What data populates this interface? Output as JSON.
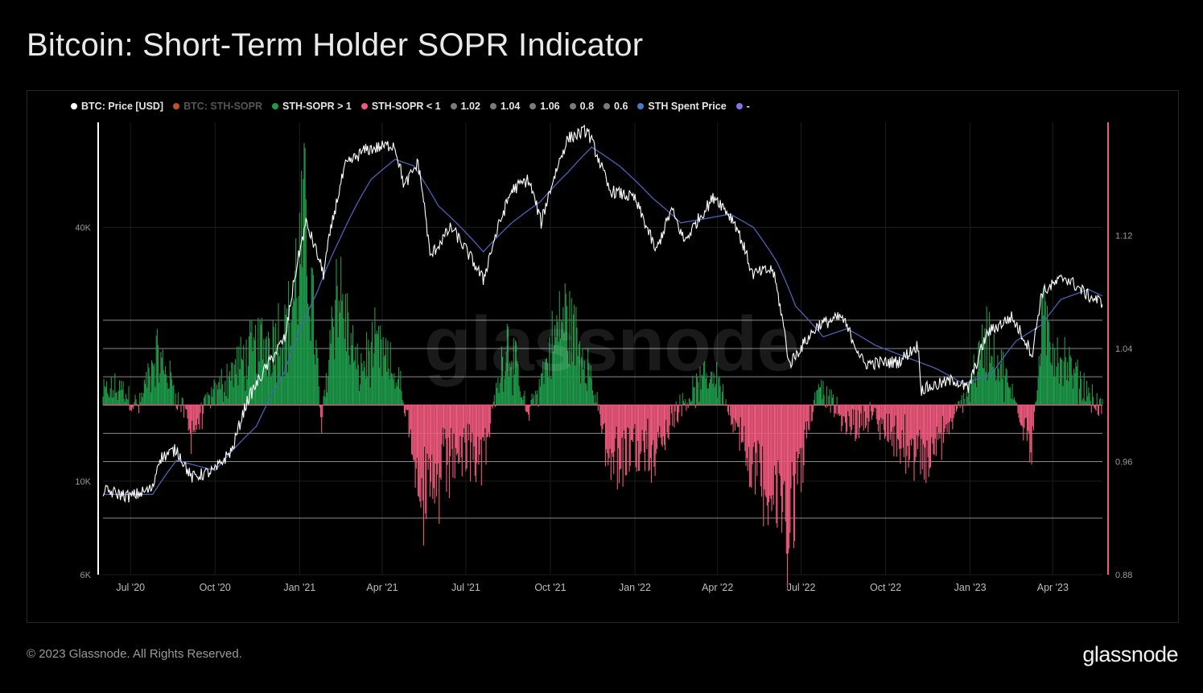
{
  "title": "Bitcoin: Short-Term Holder SOPR Indicator",
  "watermark": "glassnode",
  "footer": {
    "copyright": "© 2023 Glassnode. All Rights Reserved.",
    "logo": "glassnode"
  },
  "legend": [
    {
      "label": "BTC: Price [USD]",
      "color": "#ffffff",
      "text_color": "#e6e6e6"
    },
    {
      "label": "BTC: STH-SOPR",
      "color": "#c0531e",
      "text_color": "#555555"
    },
    {
      "label": "STH-SOPR > 1",
      "color": "#1e9a4a",
      "text_color": "#e6e6e6"
    },
    {
      "label": "STH-SOPR < 1",
      "color": "#f05a7e",
      "text_color": "#e6e6e6"
    },
    {
      "label": "1.02",
      "color": "#7a7a7a",
      "text_color": "#e6e6e6"
    },
    {
      "label": "1.04",
      "color": "#7a7a7a",
      "text_color": "#e6e6e6"
    },
    {
      "label": "1.06",
      "color": "#7a7a7a",
      "text_color": "#e6e6e6"
    },
    {
      "label": "0.8",
      "color": "#7a7a7a",
      "text_color": "#e6e6e6"
    },
    {
      "label": "0.6",
      "color": "#7a7a7a",
      "text_color": "#e6e6e6"
    },
    {
      "label": "STH Spent Price",
      "color": "#4a78c8",
      "text_color": "#e6e6e6"
    },
    {
      "label": "-",
      "color": "#8b6fe8",
      "text_color": "#e6e6e6"
    }
  ],
  "chart_data": {
    "type": "line",
    "x_start": "2020-06-01",
    "x_end": "2023-05-25",
    "x_ticks": [
      "Jul '20",
      "Oct '20",
      "Jan '21",
      "Apr '21",
      "Jul '21",
      "Oct '21",
      "Jan '22",
      "Apr '22",
      "Jul '22",
      "Oct '22",
      "Jan '23",
      "Apr '23"
    ],
    "y_left": {
      "scale": "log",
      "ticks": [
        "40K",
        "10K",
        "6K"
      ],
      "tick_values": [
        40000,
        10000,
        6000
      ],
      "range": [
        6000,
        71000
      ]
    },
    "y_right": {
      "ticks": [
        "1.12",
        "1.04",
        "0.96",
        "0.88"
      ],
      "tick_values": [
        1.12,
        1.04,
        0.96,
        0.88
      ],
      "range": [
        0.88,
        1.2
      ]
    },
    "reference_lines": [
      1.06,
      1.04,
      1.02,
      1.0,
      0.98,
      0.96,
      0.92
    ],
    "colors": {
      "price": "#ffffff",
      "sth_spent_price": "#4a62b8",
      "above": "#1e9a4a",
      "below": "#f05a7e",
      "baseline": "#f05a7e",
      "grid": "#1c1c1c",
      "ref": "#8a8a8a"
    },
    "series": [
      {
        "name": "BTC: Price [USD]",
        "points": [
          [
            "2020-06-01",
            9500
          ],
          [
            "2020-07-01",
            9200
          ],
          [
            "2020-07-25",
            9600
          ],
          [
            "2020-08-01",
            11300
          ],
          [
            "2020-08-20",
            11900
          ],
          [
            "2020-09-05",
            10200
          ],
          [
            "2020-10-01",
            10600
          ],
          [
            "2020-10-20",
            11900
          ],
          [
            "2020-11-05",
            15500
          ],
          [
            "2020-11-25",
            18500
          ],
          [
            "2020-12-17",
            22000
          ],
          [
            "2021-01-08",
            41000
          ],
          [
            "2021-01-27",
            31000
          ],
          [
            "2021-02-20",
            56000
          ],
          [
            "2021-03-13",
            61000
          ],
          [
            "2021-04-14",
            63000
          ],
          [
            "2021-04-25",
            50000
          ],
          [
            "2021-05-10",
            57000
          ],
          [
            "2021-05-23",
            34000
          ],
          [
            "2021-06-15",
            40000
          ],
          [
            "2021-07-20",
            30000
          ],
          [
            "2021-08-20",
            49000
          ],
          [
            "2021-09-07",
            52000
          ],
          [
            "2021-09-21",
            41000
          ],
          [
            "2021-10-20",
            65000
          ],
          [
            "2021-11-10",
            68000
          ],
          [
            "2021-12-04",
            49000
          ],
          [
            "2021-12-31",
            47000
          ],
          [
            "2022-01-24",
            35000
          ],
          [
            "2022-02-10",
            44000
          ],
          [
            "2022-02-24",
            37000
          ],
          [
            "2022-03-29",
            47500
          ],
          [
            "2022-04-20",
            41000
          ],
          [
            "2022-05-09",
            31000
          ],
          [
            "2022-05-31",
            31800
          ],
          [
            "2022-06-18",
            18900
          ],
          [
            "2022-07-20",
            23500
          ],
          [
            "2022-08-14",
            24500
          ],
          [
            "2022-09-07",
            19000
          ],
          [
            "2022-10-15",
            19200
          ],
          [
            "2022-11-05",
            21000
          ],
          [
            "2022-11-09",
            16500
          ],
          [
            "2022-12-15",
            17400
          ],
          [
            "2022-12-30",
            16500
          ],
          [
            "2023-01-20",
            22500
          ],
          [
            "2023-02-15",
            24500
          ],
          [
            "2023-03-10",
            20000
          ],
          [
            "2023-03-20",
            28000
          ],
          [
            "2023-04-14",
            30500
          ],
          [
            "2023-05-10",
            27500
          ],
          [
            "2023-05-25",
            26500
          ]
        ]
      },
      {
        "name": "STH Spent Price",
        "points": [
          [
            "2020-06-01",
            9300
          ],
          [
            "2020-07-25",
            9300
          ],
          [
            "2020-08-20",
            11200
          ],
          [
            "2020-10-01",
            10600
          ],
          [
            "2020-11-15",
            13500
          ],
          [
            "2020-12-15",
            18000
          ],
          [
            "2021-01-20",
            28000
          ],
          [
            "2021-02-15",
            38000
          ],
          [
            "2021-03-20",
            52000
          ],
          [
            "2021-04-15",
            58000
          ],
          [
            "2021-05-05",
            56000
          ],
          [
            "2021-06-01",
            45000
          ],
          [
            "2021-07-20",
            35000
          ],
          [
            "2021-08-20",
            41000
          ],
          [
            "2021-09-20",
            46000
          ],
          [
            "2021-10-20",
            54000
          ],
          [
            "2021-11-15",
            62000
          ],
          [
            "2021-12-15",
            56000
          ],
          [
            "2022-01-20",
            47000
          ],
          [
            "2022-02-20",
            41000
          ],
          [
            "2022-03-20",
            42000
          ],
          [
            "2022-04-15",
            43000
          ],
          [
            "2022-05-10",
            40000
          ],
          [
            "2022-06-05",
            33000
          ],
          [
            "2022-06-25",
            26000
          ],
          [
            "2022-07-25",
            22000
          ],
          [
            "2022-08-20",
            23000
          ],
          [
            "2022-09-20",
            21000
          ],
          [
            "2022-10-20",
            19800
          ],
          [
            "2022-11-25",
            18500
          ],
          [
            "2022-12-25",
            17000
          ],
          [
            "2023-01-25",
            18000
          ],
          [
            "2023-02-20",
            21500
          ],
          [
            "2023-03-20",
            23500
          ],
          [
            "2023-04-10",
            27000
          ],
          [
            "2023-05-10",
            28500
          ],
          [
            "2023-05-25",
            27500
          ]
        ]
      },
      {
        "name": "STH-SOPR",
        "points": [
          [
            "2020-06-01",
            1.01
          ],
          [
            "2020-06-20",
            1.015
          ],
          [
            "2020-07-10",
            0.998
          ],
          [
            "2020-07-28",
            1.045
          ],
          [
            "2020-08-15",
            1.02
          ],
          [
            "2020-09-05",
            0.975
          ],
          [
            "2020-09-25",
            1.005
          ],
          [
            "2020-10-20",
            1.03
          ],
          [
            "2020-11-15",
            1.05
          ],
          [
            "2020-12-20",
            1.07
          ],
          [
            "2021-01-08",
            1.16
          ],
          [
            "2021-01-25",
            0.985
          ],
          [
            "2021-02-10",
            1.11
          ],
          [
            "2021-03-05",
            1.03
          ],
          [
            "2021-03-25",
            1.05
          ],
          [
            "2021-04-20",
            1.02
          ],
          [
            "2021-05-19",
            0.91
          ],
          [
            "2021-06-20",
            0.96
          ],
          [
            "2021-07-20",
            0.955
          ],
          [
            "2021-08-15",
            1.06
          ],
          [
            "2021-09-07",
            0.99
          ],
          [
            "2021-10-15",
            1.08
          ],
          [
            "2021-11-10",
            1.04
          ],
          [
            "2021-12-04",
            0.955
          ],
          [
            "2022-01-22",
            0.96
          ],
          [
            "2022-02-20",
            1.0
          ],
          [
            "2022-03-28",
            1.03
          ],
          [
            "2022-05-11",
            0.945
          ],
          [
            "2022-06-18",
            0.9
          ],
          [
            "2022-07-20",
            1.02
          ],
          [
            "2022-08-20",
            0.98
          ],
          [
            "2022-09-20",
            0.99
          ],
          [
            "2022-11-09",
            0.945
          ],
          [
            "2022-12-20",
            0.995
          ],
          [
            "2023-01-20",
            1.06
          ],
          [
            "2023-03-10",
            0.965
          ],
          [
            "2023-03-20",
            1.07
          ],
          [
            "2023-04-20",
            1.03
          ],
          [
            "2023-05-25",
            0.995
          ]
        ]
      }
    ]
  }
}
